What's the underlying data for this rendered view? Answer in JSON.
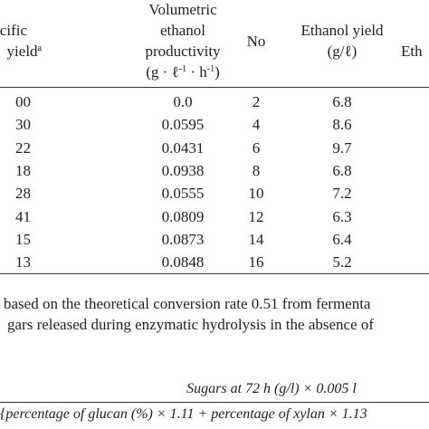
{
  "table": {
    "header": {
      "col0": {
        "lines": [
          "cific",
          "yield"
        ],
        "sup": "a"
      },
      "col1": {
        "lines": [
          "Volumetric",
          "ethanol",
          "productivity"
        ],
        "unit": [
          "(g · ℓ",
          "-1",
          " · h",
          "-1",
          ")"
        ]
      },
      "col2": {
        "lines": [
          "No"
        ]
      },
      "col3": {
        "lines": [
          "Ethanol yield",
          "(g/ℓ)"
        ]
      },
      "col4": {
        "lines": [
          "Eth"
        ]
      }
    },
    "rows": [
      [
        "00",
        "0.0",
        "2",
        "6.8"
      ],
      [
        "30",
        "0.0595",
        "4",
        "8.6"
      ],
      [
        "22",
        "0.0431",
        "6",
        "9.7"
      ],
      [
        "18",
        "0.0938",
        "8",
        "6.8"
      ],
      [
        "28",
        "0.0555",
        "10",
        "7.2"
      ],
      [
        "41",
        "0.0809",
        "12",
        "6.3"
      ],
      [
        "15",
        "0.0873",
        "14",
        "6.4"
      ],
      [
        "13",
        "0.0848",
        "16",
        "5.2"
      ]
    ]
  },
  "footnotes": [
    "based on the theoretical conversion rate 0.51 from fermenta",
    "gars released during enzymatic hydrolysis in the absence of"
  ],
  "formula": {
    "numerator": "Sugars at 72 h (g/l) × 0.005 l",
    "denominator": "{percentage of glucan (%) × 1.11 + percentage of xylan × 1.13"
  }
}
